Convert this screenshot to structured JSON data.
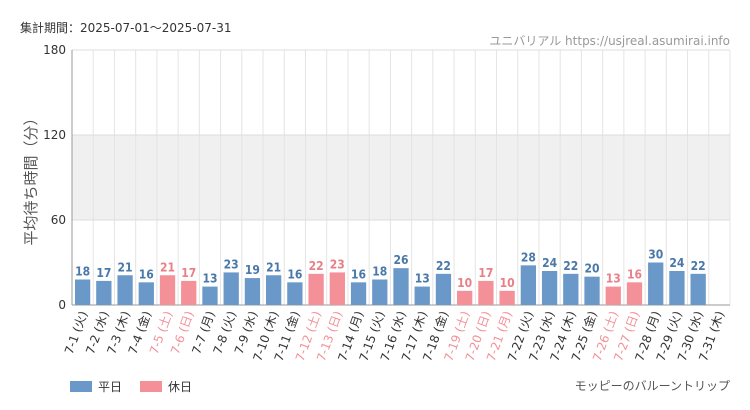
{
  "header": {
    "period": "集計期間：2025-07-01〜2025-07-31",
    "brand": "ユニバリアル https://usjreal.asumirai.info"
  },
  "footer": {
    "attraction": "モッピーのバルーントリップ"
  },
  "legend": [
    {
      "label": "平日",
      "color": "#6a98c8"
    },
    {
      "label": "休日",
      "color": "#f39098"
    }
  ],
  "chart_data": {
    "type": "bar",
    "ylabel": "平均待ち時間（分）",
    "ylim": [
      0,
      180
    ],
    "yticks": [
      0,
      60,
      120,
      180
    ],
    "shaded_band": [
      60,
      120
    ],
    "grid": true,
    "legend_position": "bottom-left",
    "categories": [
      "7-1 (火)",
      "7-2 (水)",
      "7-3 (木)",
      "7-4 (金)",
      "7-5 (土)",
      "7-6 (日)",
      "7-7 (月)",
      "7-8 (火)",
      "7-9 (水)",
      "7-10 (木)",
      "7-11 (金)",
      "7-12 (土)",
      "7-13 (日)",
      "7-14 (月)",
      "7-15 (火)",
      "7-16 (水)",
      "7-17 (木)",
      "7-18 (金)",
      "7-19 (土)",
      "7-20 (日)",
      "7-21 (月)",
      "7-22 (火)",
      "7-23 (水)",
      "7-24 (木)",
      "7-25 (金)",
      "7-26 (土)",
      "7-27 (日)",
      "7-28 (月)",
      "7-29 (火)",
      "7-30 (水)",
      "7-31 (木)"
    ],
    "values": [
      18,
      17,
      21,
      16,
      21,
      17,
      13,
      23,
      19,
      21,
      16,
      22,
      23,
      16,
      18,
      26,
      13,
      22,
      10,
      17,
      10,
      28,
      24,
      22,
      20,
      13,
      16,
      30,
      24,
      22,
      null
    ],
    "holiday": [
      false,
      false,
      false,
      false,
      true,
      true,
      false,
      false,
      false,
      false,
      false,
      true,
      true,
      false,
      false,
      false,
      false,
      false,
      true,
      true,
      true,
      false,
      false,
      false,
      false,
      true,
      true,
      false,
      false,
      false,
      false
    ],
    "colors": {
      "weekday": "#6a98c8",
      "holiday": "#f39098",
      "weekday_label": "#4a78a8",
      "holiday_label": "#e8808a",
      "band": "#f0f0f0",
      "grid": "#e4e4e4"
    }
  }
}
